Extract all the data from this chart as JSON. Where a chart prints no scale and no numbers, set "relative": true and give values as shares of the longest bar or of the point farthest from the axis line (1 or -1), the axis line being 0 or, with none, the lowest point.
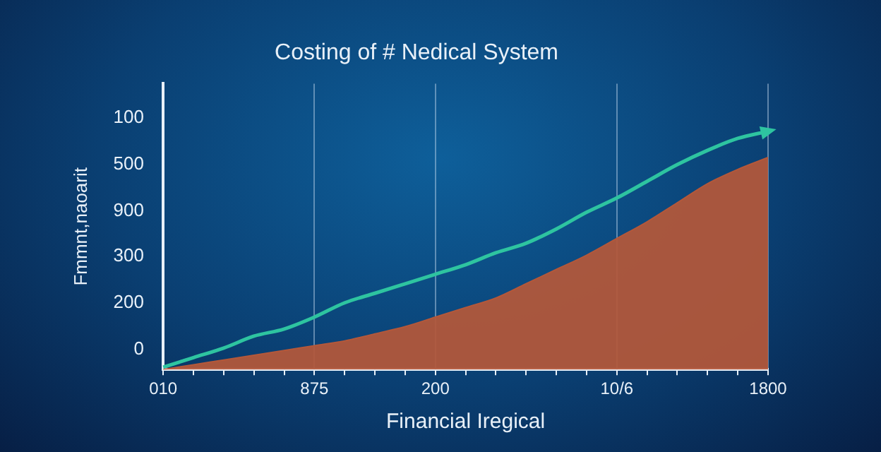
{
  "chart_data": {
    "type": "area",
    "title": "Costing of # Nedical System",
    "xlabel": "Financial Iregical",
    "ylabel": "Fmmnt,naoarit",
    "relative": true,
    "categories": [
      "010",
      null,
      null,
      null,
      null,
      "875",
      null,
      null,
      null,
      "200",
      null,
      null,
      null,
      null,
      null,
      "10/6",
      null,
      null,
      null,
      null,
      "1800"
    ],
    "series": [
      {
        "type": "area",
        "color": "#b4583a",
        "values": [
          0,
          0.02,
          0.04,
          0.06,
          0.08,
          0.1,
          0.12,
          0.15,
          0.18,
          0.22,
          0.26,
          0.3,
          0.36,
          0.42,
          0.48,
          0.55,
          0.62,
          0.7,
          0.78,
          0.84,
          0.89
        ]
      },
      {
        "type": "line",
        "color": "#2ec4a0",
        "values": [
          0.01,
          0.05,
          0.09,
          0.14,
          0.17,
          0.22,
          0.28,
          0.32,
          0.36,
          0.4,
          0.44,
          0.49,
          0.53,
          0.59,
          0.66,
          0.72,
          0.79,
          0.86,
          0.92,
          0.97,
          1
        ]
      }
    ],
    "annotations": [
      "100",
      "500",
      "900",
      "300",
      "200",
      "0"
    ],
    "grid": "x",
    "legend": false,
    "marker": "none",
    "line_style": "solid"
  }
}
